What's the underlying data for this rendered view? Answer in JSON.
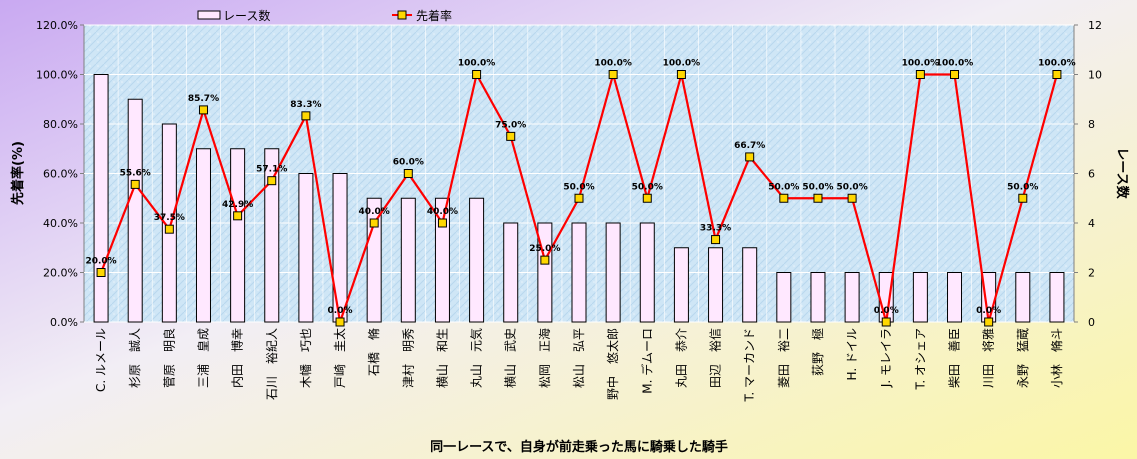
{
  "chart_data": {
    "type": "bar+line",
    "title": "",
    "xlabel": "同一レースで、自身が前走乗った馬に騎乗した騎手",
    "ylabel_left": "先着率(%)",
    "ylabel_right": "レース数",
    "ylim_left": [
      0,
      120
    ],
    "ylim_right": [
      0,
      12
    ],
    "yticks_left": [
      "0.0%",
      "20.0%",
      "40.0%",
      "60.0%",
      "80.0%",
      "100.0%",
      "120.0%"
    ],
    "yticks_right": [
      "0",
      "2",
      "4",
      "6",
      "8",
      "10",
      "12"
    ],
    "grid": true,
    "legend_position": "top",
    "categories": [
      "C. ルメール",
      "杉原　誠人",
      "菅原　明良",
      "三浦　皇成",
      "内田　博幸",
      "石川　裕紀人",
      "木幡　巧也",
      "戸崎　圭太",
      "石橋　脩",
      "津村　明秀",
      "横山　和生",
      "丸山　元気",
      "横山　武史",
      "松岡　正海",
      "松山　弘平",
      "野中　悠太郎",
      "M. デムーロ",
      "丸田　恭介",
      "田辺　裕信",
      "T. マーカンド",
      "菱田　裕二",
      "荻野　極",
      "H. ドイル",
      "J. モレイラ",
      "T. オシェア",
      "柴田　善臣",
      "川田　将雅",
      "永野　猛蔵",
      "小林　脩斗"
    ],
    "series": [
      {
        "name": "レース数",
        "type": "bar",
        "axis": "right",
        "color": "#ffe8ff",
        "values": [
          10,
          9,
          8,
          7,
          7,
          7,
          6,
          6,
          5,
          5,
          5,
          5,
          4,
          4,
          4,
          4,
          4,
          3,
          3,
          3,
          2,
          2,
          2,
          2,
          2,
          2,
          2,
          2,
          2
        ]
      },
      {
        "name": "先着率",
        "type": "line",
        "axis": "left",
        "color": "#ff0000",
        "marker_color": "#ffd700",
        "values": [
          20.0,
          55.6,
          37.5,
          85.7,
          42.9,
          57.1,
          83.3,
          0.0,
          40.0,
          60.0,
          40.0,
          100.0,
          75.0,
          25.0,
          50.0,
          100.0,
          50.0,
          100.0,
          33.3,
          66.7,
          50.0,
          50.0,
          50.0,
          0.0,
          100.0,
          100.0,
          0.0,
          50.0,
          100.0
        ],
        "labels": [
          "20.0%",
          "55.6%",
          "37.5%",
          "85.7%",
          "42.9%",
          "57.1%",
          "83.3%",
          "0.0%",
          "40.0%",
          "60.0%",
          "40.0%",
          "100.0%",
          "75.0%",
          "25.0%",
          "50.0%",
          "100.0%",
          "50.0%",
          "100.0%",
          "33.3%",
          "66.7%",
          "50.0%",
          "50.0%",
          "50.0%",
          "0.0%",
          "100.0%",
          "100.0%",
          "0.0%",
          "50.0%",
          "100.0%"
        ]
      }
    ]
  }
}
